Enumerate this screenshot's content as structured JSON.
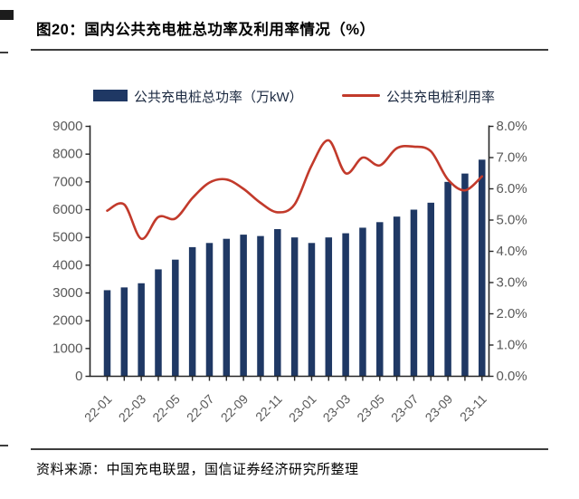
{
  "title": "图20：国内公共充电桩总功率及利用率情况（%）",
  "legend": {
    "bar_label": "公共充电桩总功率（万kW）",
    "line_label": "公共充电桩利用率"
  },
  "source": "资料来源：中国充电联盟，国信证券经济研究所整理",
  "colors": {
    "bar": "#1F3864",
    "line": "#C23A2B",
    "axis": "#262626",
    "tick_label": "#595959"
  },
  "chart_data": {
    "type": "bar+line combo",
    "categories": [
      "22-01",
      "22-02",
      "22-03",
      "22-04",
      "22-05",
      "22-06",
      "22-07",
      "22-08",
      "22-09",
      "22-10",
      "22-11",
      "22-12",
      "23-01",
      "23-02",
      "23-03",
      "23-04",
      "23-05",
      "23-06",
      "23-07",
      "23-08",
      "23-09",
      "23-10",
      "23-11"
    ],
    "x_tick_labels_visible": [
      "22-01",
      "22-03",
      "22-05",
      "22-07",
      "22-09",
      "22-11",
      "23-01",
      "23-03",
      "23-05",
      "23-07",
      "23-09",
      "23-11"
    ],
    "x_label_every": 2,
    "series": [
      {
        "name": "公共充电桩总功率（万kW）",
        "type": "bar",
        "axis": "left",
        "values": [
          3100,
          3200,
          3350,
          3850,
          4200,
          4650,
          4800,
          4950,
          5100,
          5050,
          5300,
          5000,
          4800,
          5000,
          5150,
          5350,
          5550,
          5750,
          6000,
          6250,
          7000,
          7300,
          7800
        ]
      },
      {
        "name": "公共充电桩利用率",
        "type": "line",
        "axis": "right",
        "values": [
          5.3,
          5.5,
          4.4,
          5.1,
          5.05,
          5.7,
          6.2,
          6.3,
          6.0,
          5.55,
          5.25,
          5.5,
          6.75,
          7.55,
          6.5,
          7.0,
          6.75,
          7.3,
          7.35,
          7.2,
          6.3,
          5.95,
          6.4
        ]
      }
    ],
    "y_left": {
      "min": 0,
      "max": 9000,
      "tick_step": 1000,
      "labels": [
        "0",
        "1000",
        "2000",
        "3000",
        "4000",
        "5000",
        "6000",
        "7000",
        "8000",
        "9000"
      ]
    },
    "y_right": {
      "min": 0,
      "max": 8,
      "tick_step": 1,
      "labels": [
        "0.0%",
        "1.0%",
        "2.0%",
        "3.0%",
        "4.0%",
        "5.0%",
        "6.0%",
        "7.0%",
        "8.0%"
      ]
    },
    "grid": false,
    "legend_position": "top"
  }
}
